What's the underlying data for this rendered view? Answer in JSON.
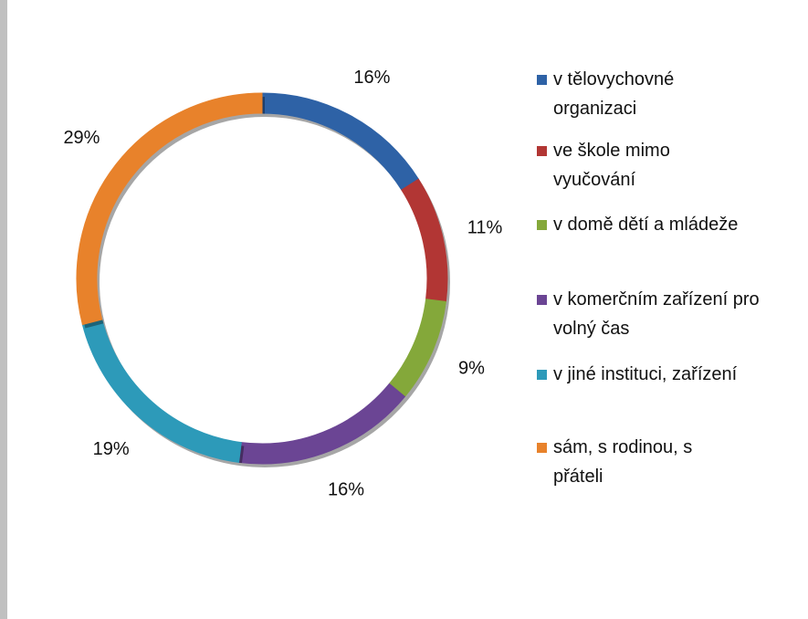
{
  "chart_data": {
    "type": "doughnut",
    "categories": [
      "v tělovychovné organizaci",
      "ve škole mimo vyučování",
      "v domě dětí a mládeže",
      "v komerčním zařízení pro volný čas",
      "v jiné instituci, zařízení",
      "sám, s rodinou, s přáteli"
    ],
    "values": [
      16,
      11,
      9,
      16,
      19,
      29
    ],
    "value_labels": [
      "16%",
      "11%",
      "9%",
      "16%",
      "19%",
      "29%"
    ],
    "colors": [
      "#2e62a6",
      "#b23634",
      "#84a83a",
      "#6b4594",
      "#2d9ab9",
      "#e8822b"
    ],
    "legend": "right"
  }
}
